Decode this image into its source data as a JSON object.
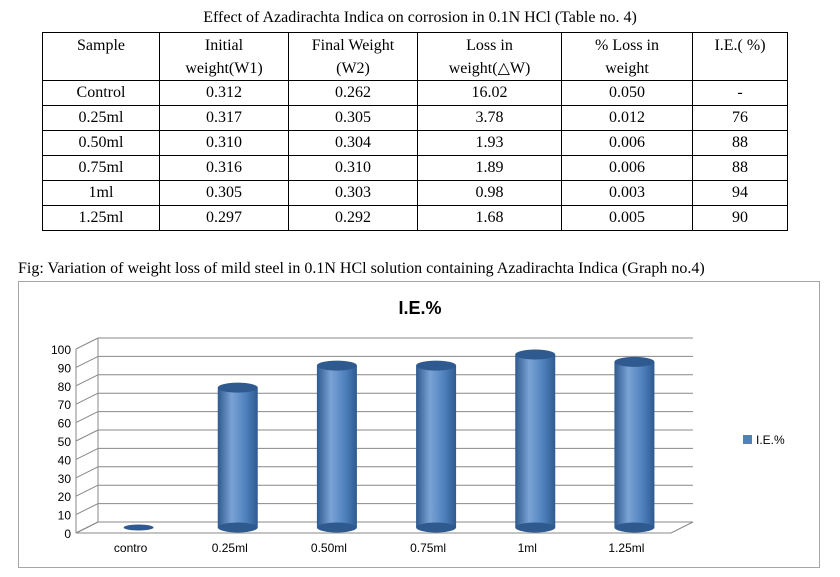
{
  "table": {
    "caption": "Effect of Azadirachta Indica on corrosion in 0.1N HCl (Table no. 4)",
    "headers": [
      {
        "line1": "Sample",
        "line2": ""
      },
      {
        "line1": "Initial",
        "line2": "weight(W1)"
      },
      {
        "line1": "Final Weight",
        "line2": "(W2)"
      },
      {
        "line1": "Loss in",
        "line2": "weight(△W)"
      },
      {
        "line1": "% Loss in",
        "line2": "weight"
      },
      {
        "line1": "I.E.( %)",
        "line2": ""
      }
    ],
    "rows": [
      [
        "Control",
        "0.312",
        "0.262",
        "16.02",
        "0.050",
        "-"
      ],
      [
        "0.25ml",
        "0.317",
        "0.305",
        "3.78",
        "0.012",
        "76"
      ],
      [
        "0.50ml",
        "0.310",
        "0.304",
        "1.93",
        "0.006",
        "88"
      ],
      [
        "0.75ml",
        "0.316",
        "0.310",
        "1.89",
        "0.006",
        "88"
      ],
      [
        "1ml",
        "0.305",
        "0.303",
        "0.98",
        "0.003",
        "94"
      ],
      [
        "1.25ml",
        "0.297",
        "0.292",
        "1.68",
        "0.005",
        "90"
      ]
    ]
  },
  "figure": {
    "caption": "Fig: Variation of weight loss of mild steel in 0.1N HCl solution containing Azadirachta Indica (Graph no.4)"
  },
  "chart_data": {
    "type": "bar",
    "title": "I.E.%",
    "xlabel": "",
    "ylabel": "",
    "categories": [
      "contro",
      "0.25ml",
      "0.50ml",
      "0.75ml",
      "1ml",
      "1.25ml"
    ],
    "series": [
      {
        "name": "I.E.%",
        "values": [
          0,
          76,
          88,
          88,
          94,
          90
        ]
      }
    ],
    "ylim": [
      0,
      100
    ],
    "yticks": [
      0,
      10,
      20,
      30,
      40,
      50,
      60,
      70,
      80,
      90,
      100
    ],
    "grid": true,
    "legend": "right",
    "style": "3d-cylinder",
    "colors": {
      "bar": "#4f81bd",
      "bar_dark": "#2f5a8f",
      "bar_light": "#7aa3d6",
      "grid": "#888888"
    }
  }
}
